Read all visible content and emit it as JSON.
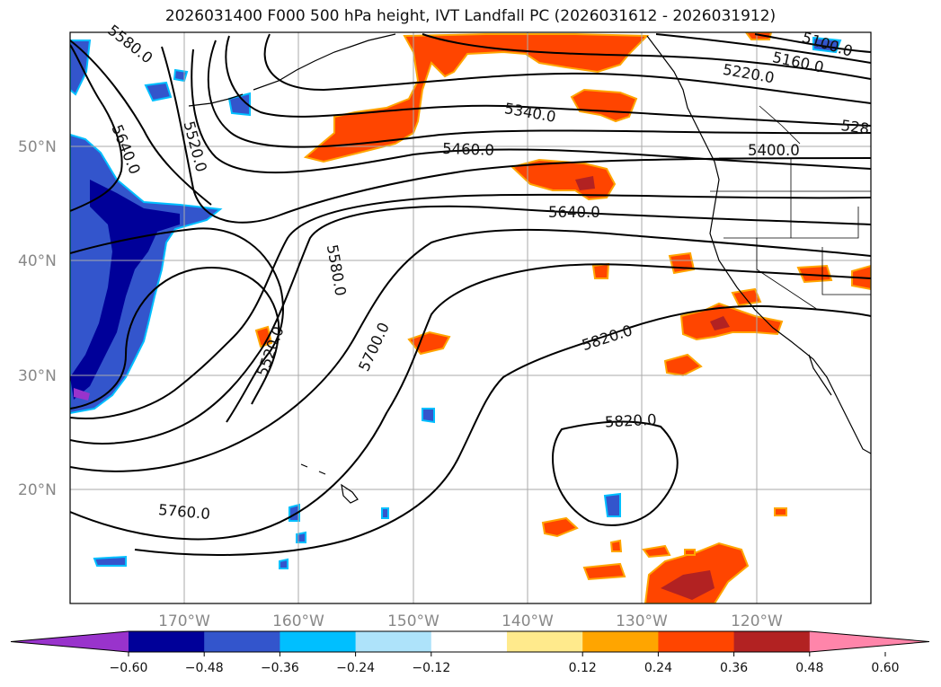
{
  "title": "2026031400 F000 500 hPa height, IVT Landfall PC (2026031612 - 2026031912)",
  "map": {
    "projection": "plate carree",
    "lon_range": [
      -180,
      -110
    ],
    "lat_range": [
      10,
      60
    ],
    "lat_labels": [
      "50°N",
      "40°N",
      "30°N",
      "20°N"
    ],
    "lon_labels": [
      "170°W",
      "160°W",
      "150°W",
      "140°W",
      "130°W",
      "120°W"
    ]
  },
  "contour_labels": [
    "5580.0",
    "5640.0",
    "5520.0",
    "5100.0",
    "5160.0",
    "5220.0",
    "528",
    "5340.0",
    "5460.0",
    "5400.0",
    "5640.0",
    "5580.0",
    "5520.0",
    "5700.0",
    "5820.0",
    "5820.0",
    "5760.0"
  ],
  "colorbar": {
    "ticks": [
      "−0.60",
      "−0.48",
      "−0.36",
      "−0.24",
      "−0.12",
      "0.12",
      "0.24",
      "0.36",
      "0.48",
      "0.60"
    ],
    "colors": [
      "#9933cc",
      "#000099",
      "#3355cc",
      "#00bfff",
      "#aee3fa",
      "#ffffff",
      "#ffea8c",
      "#ffa500",
      "#ff4500",
      "#b22222",
      "#ff85aa"
    ],
    "extend": "both"
  }
}
